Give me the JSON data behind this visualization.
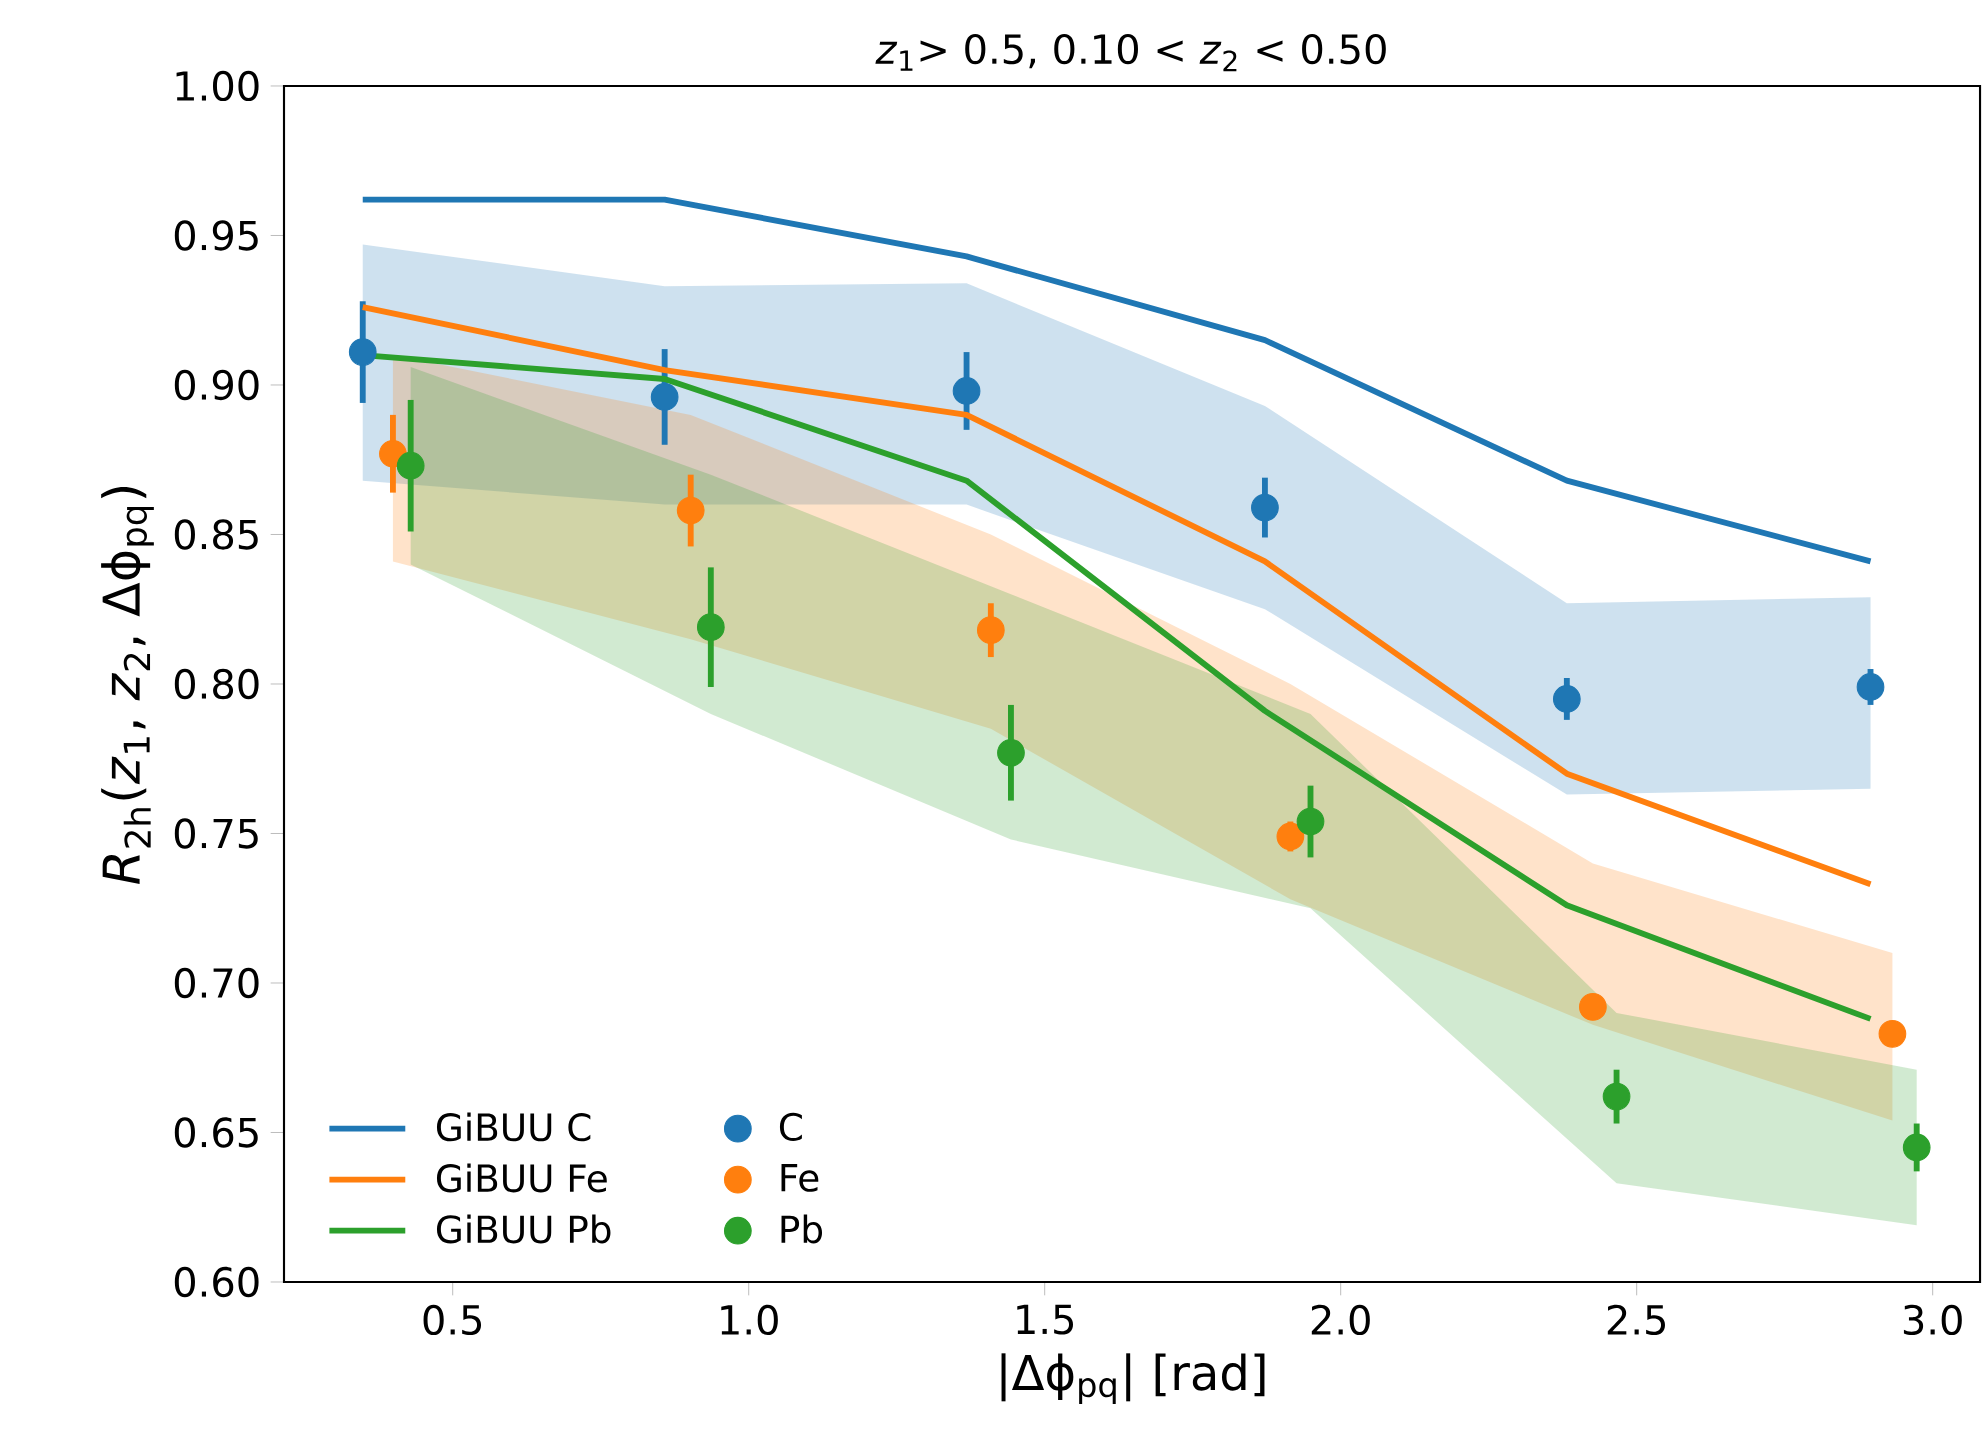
{
  "chart_data": {
    "type": "line",
    "title": "*z*$_{1}$> 0.5, 0.10 < *z*$_{2}$ < 0.50",
    "xlabel": "|Δϕ$_{pq}$|  [rad]",
    "ylabel": "*R*$_{2h}$(*z*$_{1}$, *z*$_{2}$, Δϕ$_{pq}$)",
    "xlim": [
      0.215,
      3.08
    ],
    "ylim": [
      0.6,
      1.0
    ],
    "xticks": [
      {
        "value": 0.5,
        "label": "0.5"
      },
      {
        "value": 1.0,
        "label": "1.0"
      },
      {
        "value": 1.5,
        "label": "1.5"
      },
      {
        "value": 2.0,
        "label": "2.0"
      },
      {
        "value": 2.5,
        "label": "2.5"
      },
      {
        "value": 3.0,
        "label": "3.0"
      }
    ],
    "yticks": [
      {
        "value": 0.6,
        "label": "0.60"
      },
      {
        "value": 0.65,
        "label": "0.65"
      },
      {
        "value": 0.7,
        "label": "0.70"
      },
      {
        "value": 0.75,
        "label": "0.75"
      },
      {
        "value": 0.8,
        "label": "0.80"
      },
      {
        "value": 0.85,
        "label": "0.85"
      },
      {
        "value": 0.9,
        "label": "0.90"
      },
      {
        "value": 0.95,
        "label": "0.95"
      },
      {
        "value": 1.0,
        "label": "1.00"
      }
    ],
    "legend": "bottom left",
    "grid": false,
    "series": [
      {
        "name": "GiBUU C",
        "marker": "none",
        "color": "#1f77b4",
        "x": [
          0.348,
          0.858,
          1.368,
          1.872,
          2.382,
          2.895
        ],
        "values": [
          0.962,
          0.962,
          0.943,
          0.915,
          0.868,
          0.841
        ]
      },
      {
        "name": "C",
        "type": "scatter",
        "marker": "circle",
        "color": "#1f77b4",
        "x": [
          0.348,
          0.858,
          1.368,
          1.872,
          2.382,
          2.895
        ],
        "values": [
          0.911,
          0.896,
          0.898,
          0.859,
          0.795,
          0.799
        ],
        "errors": [
          0.017,
          0.016,
          0.013,
          0.01,
          0.007,
          0.006
        ],
        "lower": [
          0.868,
          0.86,
          0.86,
          0.825,
          0.763,
          0.765
        ],
        "upper": [
          0.947,
          0.933,
          0.934,
          0.893,
          0.827,
          0.829
        ]
      },
      {
        "name": "GiBUU Fe",
        "marker": "none",
        "color": "#ff7f0e",
        "x": [
          0.348,
          0.858,
          1.368,
          1.872,
          2.382,
          2.895
        ],
        "values": [
          0.926,
          0.905,
          0.89,
          0.841,
          0.77,
          0.733
        ]
      },
      {
        "name": "Fe",
        "type": "scatter",
        "marker": "circle",
        "color": "#ff7f0e",
        "x": [
          0.399,
          0.902,
          1.409,
          1.915,
          2.426,
          2.932
        ],
        "values": [
          0.877,
          0.858,
          0.818,
          0.749,
          0.692,
          0.683
        ],
        "errors": [
          0.013,
          0.012,
          0.009,
          0.005,
          0.004,
          0.004
        ],
        "lower": [
          0.841,
          0.815,
          0.785,
          0.728,
          0.686,
          0.654
        ],
        "upper": [
          0.91,
          0.89,
          0.85,
          0.8,
          0.74,
          0.71
        ]
      },
      {
        "name": "GiBUU Pb",
        "marker": "none",
        "color": "#2ca02c",
        "x": [
          0.348,
          0.858,
          1.368,
          1.872,
          2.382,
          2.895
        ],
        "values": [
          0.91,
          0.902,
          0.868,
          0.791,
          0.726,
          0.688
        ]
      },
      {
        "name": "Pb",
        "type": "scatter",
        "marker": "circle",
        "color": "#2ca02c",
        "x": [
          0.429,
          0.936,
          1.443,
          1.949,
          2.466,
          2.973
        ],
        "values": [
          0.873,
          0.819,
          0.777,
          0.754,
          0.662,
          0.645
        ],
        "errors": [
          0.022,
          0.02,
          0.016,
          0.012,
          0.009,
          0.008
        ],
        "lower": [
          0.84,
          0.79,
          0.748,
          0.725,
          0.633,
          0.619
        ],
        "upper": [
          0.906,
          0.87,
          0.83,
          0.79,
          0.69,
          0.671
        ]
      }
    ]
  }
}
